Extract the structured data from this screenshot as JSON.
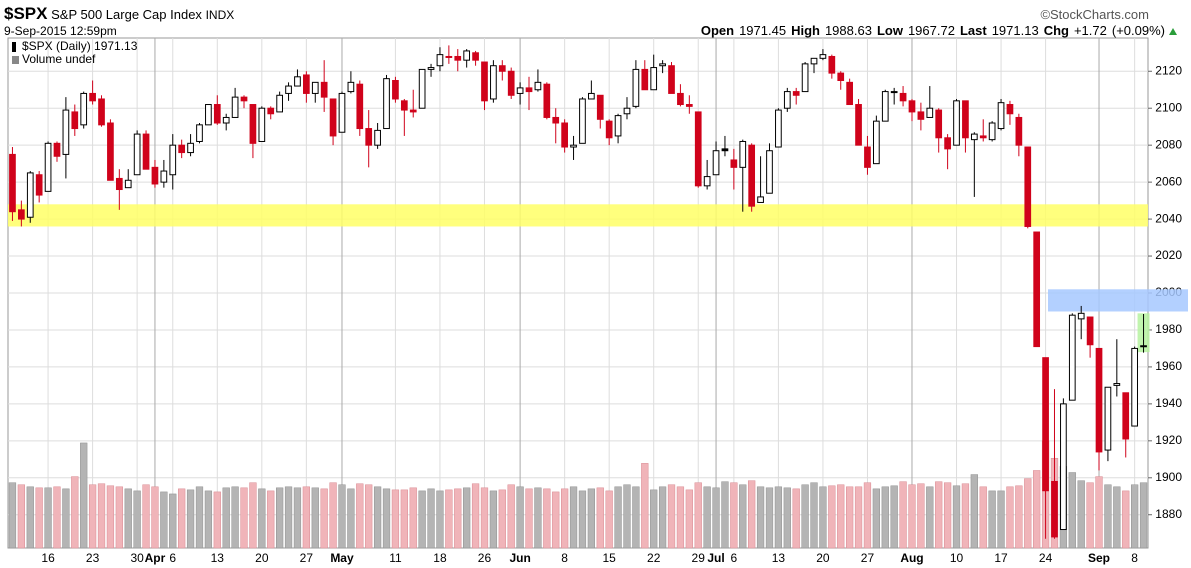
{
  "chart_data": {
    "type": "candlestick",
    "title": "$SPX",
    "subtitle": "S&P 500 Large Cap Index",
    "exchange": "INDX",
    "timestamp": "9-Sep-2015 12:59pm",
    "credit": "©StockCharts.com",
    "quote": [
      {
        "label": "Open",
        "value": 1971.45
      },
      {
        "label": "High",
        "value": 1988.63
      },
      {
        "label": "Low",
        "value": 1967.72
      },
      {
        "label": "Last",
        "value": 1971.13
      },
      {
        "label": "Chg",
        "value": "+1.72",
        "pct": "(+0.09%)"
      }
    ],
    "categories": [
      null,
      null,
      null,
      null,
      "16",
      null,
      null,
      null,
      null,
      "23",
      null,
      null,
      null,
      null,
      "30",
      null,
      "Apr",
      null,
      "6",
      null,
      null,
      null,
      null,
      "13",
      null,
      null,
      null,
      null,
      "20",
      null,
      null,
      null,
      null,
      "27",
      null,
      null,
      null,
      "May",
      null,
      null,
      null,
      null,
      null,
      "11",
      null,
      null,
      null,
      null,
      "18",
      null,
      null,
      null,
      null,
      "26",
      null,
      null,
      null,
      "Jun",
      null,
      null,
      null,
      null,
      "8",
      null,
      null,
      null,
      null,
      "15",
      null,
      null,
      null,
      null,
      "22",
      null,
      null,
      null,
      null,
      "29",
      null,
      "Jul",
      null,
      "6",
      null,
      null,
      null,
      null,
      "13",
      null,
      null,
      null,
      null,
      "20",
      null,
      null,
      null,
      null,
      "27",
      null,
      null,
      null,
      null,
      "Aug",
      null,
      null,
      null,
      null,
      "10",
      null,
      null,
      null,
      null,
      "17",
      null,
      null,
      null,
      null,
      "24",
      null,
      null,
      null,
      null,
      null,
      "Sep",
      null,
      null,
      null,
      "8",
      null
    ],
    "month_labels": [
      "Apr",
      "May",
      "Jun",
      "Jul",
      "Aug",
      "Sep"
    ],
    "series": [
      {
        "name": "$SPX (Daily) 1971.13",
        "up_color": "#000000",
        "down_color": "#d0021b",
        "open": [
          2075,
          2045,
          2041,
          2064,
          2055,
          2081,
          2075,
          2098,
          2091,
          2108,
          2105,
          2092,
          2062,
          2057,
          2064,
          2086,
          2068,
          2060,
          2064,
          2080,
          2076,
          2082,
          2091,
          2102,
          2092,
          2095,
          2106,
          2102,
          2082,
          2100,
          2098,
          2108,
          2112,
          2118,
          2108,
          2114,
          2105,
          2087,
          2109,
          2113,
          2089,
          2080,
          2089,
          2115,
          2104,
          2099,
          2100,
          2121,
          2123,
          2128,
          2128,
          2126,
          2130,
          2125,
          2105,
          2123,
          2120,
          2108,
          2111,
          2110,
          2113,
          2095,
          2092,
          2079,
          2081,
          2105,
          2107,
          2093,
          2085,
          2097,
          2101,
          2121,
          2110,
          2123,
          2123,
          2108,
          2102,
          2098,
          2058,
          2064,
          2078,
          2072,
          2068,
          2080,
          2049,
          2054,
          2079,
          2100,
          2109,
          2109,
          2124,
          2127,
          2128,
          2119,
          2114,
          2102,
          2079,
          2070,
          2093,
          2109,
          2108,
          2104,
          2098,
          2095,
          2099,
          2084,
          2080,
          2104,
          2083,
          2085,
          2083,
          2089,
          2102,
          2095,
          2079,
          2033,
          1965,
          1898,
          1872,
          1942,
          1986,
          1987,
          1970,
          1915,
          1950,
          1946,
          1928,
          1971.45
        ],
        "high": [
          2079,
          2050,
          2066,
          2066,
          2082,
          2082,
          2106,
          2102,
          2109,
          2115,
          2107,
          2094,
          2067,
          2067,
          2088,
          2088,
          2072,
          2072,
          2086,
          2083,
          2086,
          2092,
          2102,
          2107,
          2097,
          2111,
          2107,
          2102,
          2101,
          2101,
          2109,
          2114,
          2121,
          2120,
          2114,
          2126,
          2105,
          2109,
          2120,
          2115,
          2099,
          2092,
          2118,
          2117,
          2105,
          2110,
          2121,
          2124,
          2133,
          2134,
          2132,
          2132,
          2131,
          2125,
          2126,
          2126,
          2122,
          2114,
          2117,
          2121,
          2114,
          2100,
          2094,
          2085,
          2106,
          2115,
          2107,
          2094,
          2097,
          2106,
          2126,
          2126,
          2129,
          2126,
          2125,
          2113,
          2107,
          2098,
          2072,
          2082,
          2085,
          2078,
          2083,
          2081,
          2074,
          2081,
          2100,
          2111,
          2111,
          2125,
          2127,
          2132,
          2129,
          2120,
          2116,
          2105,
          2085,
          2096,
          2110,
          2111,
          2112,
          2105,
          2103,
          2112,
          2100,
          2086,
          2105,
          2104,
          2087,
          2094,
          2093,
          2105,
          2104,
          2097,
          2079,
          2033,
          1965,
          1948,
          1943,
          1989,
          1993,
          1986,
          1970,
          1949,
          1975,
          1946,
          1971,
          1988.63
        ],
        "low": [
          2039,
          2036,
          2038,
          2049,
          2055,
          2071,
          2062,
          2085,
          2089,
          2102,
          2090,
          2061,
          2045,
          2057,
          2064,
          2067,
          2057,
          2057,
          2056,
          2073,
          2074,
          2081,
          2091,
          2091,
          2088,
          2095,
          2100,
          2073,
          2082,
          2094,
          2098,
          2104,
          2112,
          2103,
          2103,
          2098,
          2080,
          2087,
          2108,
          2085,
          2068,
          2078,
          2089,
          2103,
          2085,
          2095,
          2100,
          2117,
          2120,
          2124,
          2120,
          2122,
          2123,
          2099,
          2103,
          2115,
          2105,
          2102,
          2099,
          2109,
          2094,
          2081,
          2076,
          2072,
          2081,
          2105,
          2089,
          2080,
          2081,
          2094,
          2100,
          2110,
          2110,
          2119,
          2108,
          2101,
          2097,
          2057,
          2056,
          2064,
          2074,
          2056,
          2044,
          2044,
          2049,
          2054,
          2079,
          2098,
          2102,
          2109,
          2119,
          2126,
          2116,
          2110,
          2102,
          2080,
          2064,
          2070,
          2093,
          2102,
          2101,
          2093,
          2088,
          2095,
          2076,
          2067,
          2080,
          2076,
          2052,
          2082,
          2082,
          2088,
          2091,
          2074,
          2035,
          1971,
          1867,
          1867,
          1872,
          1942,
          1975,
          1965,
          1904,
          1909,
          1944,
          1911,
          1928,
          1967.72
        ],
        "close": [
          2044,
          2040,
          2065,
          2053,
          2081,
          2074,
          2099,
          2089,
          2108,
          2104,
          2091,
          2061,
          2056,
          2061,
          2086,
          2067,
          2059,
          2066,
          2080,
          2076,
          2081,
          2091,
          2102,
          2092,
          2095,
          2106,
          2104,
          2081,
          2100,
          2097,
          2107,
          2112,
          2117,
          2108,
          2114,
          2106,
          2085,
          2108,
          2114,
          2089,
          2080,
          2088,
          2116,
          2105,
          2099,
          2098,
          2121,
          2122,
          2129,
          2128,
          2126,
          2131,
          2126,
          2104,
          2123,
          2120,
          2107,
          2111,
          2109,
          2114,
          2095,
          2092,
          2079,
          2080,
          2105,
          2108,
          2094,
          2084,
          2096,
          2100,
          2121,
          2110,
          2122,
          2124,
          2108,
          2102,
          2101,
          2058,
          2063,
          2077,
          2077,
          2068,
          2082,
          2047,
          2052,
          2077,
          2099,
          2109,
          2107,
          2124,
          2127,
          2129,
          2119,
          2115,
          2102,
          2080,
          2068,
          2093,
          2109,
          2109,
          2104,
          2098,
          2094,
          2100,
          2084,
          2078,
          2104,
          2084,
          2086,
          2084,
          2092,
          2103,
          2097,
          2080,
          2036,
          1971,
          1893,
          1868,
          1940,
          1988,
          1989,
          1972,
          1914,
          1949,
          1951,
          1921,
          1970,
          1971.13
        ]
      },
      {
        "name": "Volume undef",
        "axis": "y2",
        "up_color": "#b4b4b4",
        "down_color": "#f0b4b9",
        "values": [
          640,
          620,
          600,
          590,
          590,
          600,
          580,
          700,
          1030,
          620,
          630,
          610,
          600,
          580,
          560,
          620,
          600,
          550,
          530,
          580,
          570,
          600,
          560,
          550,
          590,
          600,
          590,
          640,
          580,
          560,
          590,
          600,
          590,
          600,
          590,
          580,
          640,
          620,
          580,
          630,
          620,
          600,
          580,
          570,
          570,
          590,
          560,
          580,
          560,
          570,
          580,
          590,
          630,
          590,
          560,
          570,
          620,
          600,
          580,
          590,
          580,
          550,
          580,
          600,
          560,
          580,
          590,
          560,
          600,
          620,
          600,
          830,
          570,
          600,
          620,
          600,
          570,
          640,
          600,
          590,
          650,
          640,
          620,
          660,
          600,
          590,
          600,
          590,
          580,
          620,
          640,
          600,
          610,
          620,
          600,
          600,
          640,
          580,
          600,
          610,
          650,
          620,
          630,
          600,
          650,
          640,
          610,
          630,
          720,
          600,
          560,
          560,
          600,
          610,
          680,
          760,
          1050,
          880,
          800,
          740,
          660,
          640,
          700,
          620,
          600,
          560,
          620,
          640
        ]
      }
    ],
    "ylim": [
      1862,
      2138
    ],
    "yticks": [
      1880,
      1900,
      1920,
      1940,
      1960,
      1980,
      2000,
      2020,
      2040,
      2060,
      2080,
      2100,
      2120
    ],
    "y2lim": [
      0,
      5000
    ],
    "grid": true,
    "bands": [
      {
        "ylim": [
          2036,
          2048
        ],
        "color": "#ffff66"
      },
      {
        "ylim": [
          1990,
          2002
        ],
        "color": "#a6c8ff"
      },
      {
        "ylim": [
          1968,
          1989
        ],
        "color": "#b6f2a0"
      }
    ]
  }
}
